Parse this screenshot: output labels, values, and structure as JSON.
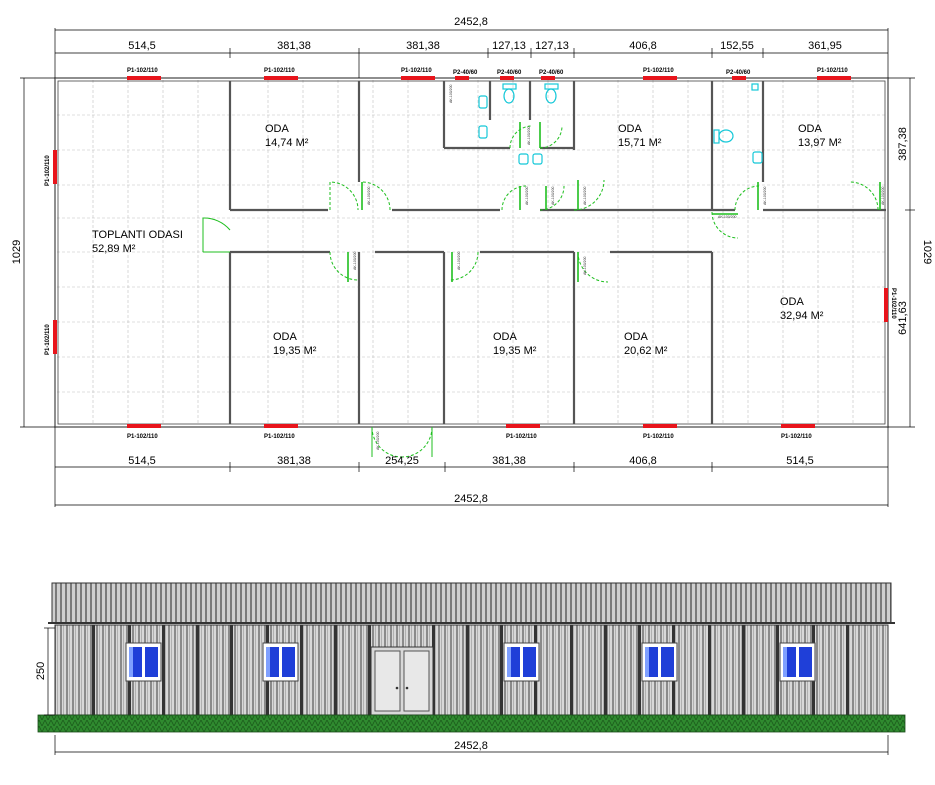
{
  "plan": {
    "overall_width": "2452,8",
    "overall_depth": "1029",
    "top_segments": [
      "514,5",
      "381,38",
      "381,38",
      "127,13",
      "127,13",
      "406,8",
      "152,55",
      "361,95"
    ],
    "bottom_segments": [
      "514,5",
      "381,38",
      "254,25",
      "381,38",
      "406,8",
      "514,5"
    ],
    "right_segments": [
      "387,38",
      "641,63"
    ],
    "window_large": "P1-102/110",
    "window_small": "P2-40/60",
    "door_code": "AK-100/200",
    "rooms": [
      {
        "name": "ODA",
        "area": "14,74 M²"
      },
      {
        "name": "ODA",
        "area": "15,71 M²"
      },
      {
        "name": "ODA",
        "area": "13,97 M²"
      },
      {
        "name": "TOPLANTI ODASI",
        "area": "52,89 M²"
      },
      {
        "name": "ODA",
        "area": "19,35 M²"
      },
      {
        "name": "ODA",
        "area": "19,35 M²"
      },
      {
        "name": "ODA",
        "area": "20,62 M²"
      },
      {
        "name": "ODA",
        "area": "32,94 M²"
      }
    ]
  },
  "elevation": {
    "height": "250",
    "width": "2452,8"
  },
  "colors": {
    "wall": "#555555",
    "window": "#e8141b",
    "door": "#1fbf1f",
    "fixture": "#14c8d8",
    "grass": "#2e7d2e",
    "glass": "#1f3fd8"
  }
}
